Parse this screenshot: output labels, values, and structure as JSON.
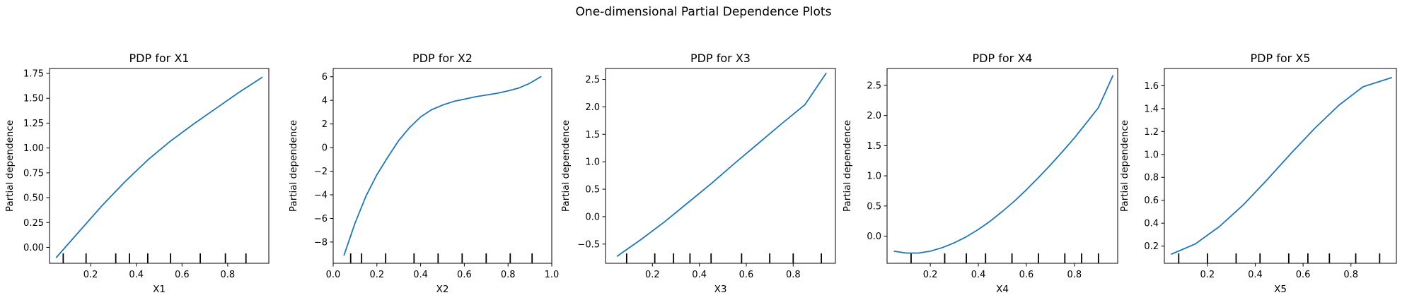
{
  "figure": {
    "title": "One-dimensional Partial Dependence Plots"
  },
  "colors": {
    "line": "#1f77b4",
    "axis": "#000000",
    "background": "#ffffff"
  },
  "chart_data": [
    {
      "type": "line",
      "title": "PDP for X1",
      "xlabel": "X1",
      "ylabel": "Partial dependence",
      "xlim": [
        0.02,
        0.98
      ],
      "ylim": [
        -0.16,
        1.8
      ],
      "xticks": [
        0.2,
        0.4,
        0.6,
        0.8
      ],
      "xtick_labels": [
        "0.2",
        "0.4",
        "0.6",
        "0.8"
      ],
      "yticks": [
        0.0,
        0.25,
        0.5,
        0.75,
        1.0,
        1.25,
        1.5,
        1.75
      ],
      "ytick_labels": [
        "0.00",
        "0.25",
        "0.50",
        "0.75",
        "1.00",
        "1.25",
        "1.50",
        "1.75"
      ],
      "series": [
        {
          "x": [
            0.05,
            0.15,
            0.25,
            0.35,
            0.45,
            0.55,
            0.65,
            0.75,
            0.85,
            0.95
          ],
          "y": [
            -0.1,
            0.16,
            0.42,
            0.66,
            0.88,
            1.07,
            1.24,
            1.4,
            1.56,
            1.71
          ]
        }
      ],
      "rug": [
        0.08,
        0.18,
        0.31,
        0.37,
        0.45,
        0.55,
        0.68,
        0.79,
        0.88
      ]
    },
    {
      "type": "line",
      "title": "PDP for X2",
      "xlabel": "X2",
      "ylabel": "Partial dependence",
      "xlim": [
        0.0,
        1.0
      ],
      "ylim": [
        -9.8,
        6.7
      ],
      "xticks": [
        0.0,
        0.2,
        0.4,
        0.6,
        0.8,
        1.0
      ],
      "xtick_labels": [
        "0.0",
        "0.2",
        "0.4",
        "0.6",
        "0.8",
        "1.0"
      ],
      "yticks": [
        -8,
        -6,
        -4,
        -2,
        0,
        2,
        4,
        6
      ],
      "ytick_labels": [
        "−8",
        "−6",
        "−4",
        "−2",
        "0",
        "2",
        "4",
        "6"
      ],
      "series": [
        {
          "x": [
            0.05,
            0.1,
            0.15,
            0.2,
            0.25,
            0.3,
            0.35,
            0.4,
            0.45,
            0.5,
            0.55,
            0.6,
            0.65,
            0.7,
            0.75,
            0.8,
            0.85,
            0.9,
            0.95
          ],
          "y": [
            -9.1,
            -6.4,
            -4.1,
            -2.3,
            -0.8,
            0.6,
            1.7,
            2.6,
            3.2,
            3.6,
            3.9,
            4.1,
            4.3,
            4.45,
            4.6,
            4.8,
            5.05,
            5.45,
            6.0
          ]
        }
      ],
      "rug": [
        0.08,
        0.13,
        0.24,
        0.37,
        0.48,
        0.59,
        0.7,
        0.81,
        0.91
      ]
    },
    {
      "type": "line",
      "title": "PDP for X3",
      "xlabel": "X3",
      "ylabel": "Partial dependence",
      "xlim": [
        0.0,
        0.98
      ],
      "ylim": [
        -0.85,
        2.7
      ],
      "xticks": [
        0.2,
        0.4,
        0.6,
        0.8
      ],
      "xtick_labels": [
        "0.2",
        "0.4",
        "0.6",
        "0.8"
      ],
      "yticks": [
        -0.5,
        0.0,
        0.5,
        1.0,
        1.5,
        2.0,
        2.5
      ],
      "ytick_labels": [
        "−0.5",
        "0.0",
        "0.5",
        "1.0",
        "1.5",
        "2.0",
        "2.5"
      ],
      "series": [
        {
          "x": [
            0.05,
            0.15,
            0.25,
            0.35,
            0.45,
            0.55,
            0.65,
            0.75,
            0.85,
            0.94
          ],
          "y": [
            -0.72,
            -0.42,
            -0.1,
            0.25,
            0.6,
            0.97,
            1.33,
            1.69,
            2.04,
            2.61
          ]
        }
      ],
      "rug": [
        0.09,
        0.21,
        0.29,
        0.36,
        0.45,
        0.58,
        0.7,
        0.8,
        0.92
      ]
    },
    {
      "type": "line",
      "title": "PDP for X4",
      "xlabel": "X4",
      "ylabel": "Partial dependence",
      "xlim": [
        0.02,
        0.98
      ],
      "ylim": [
        -0.45,
        2.78
      ],
      "xticks": [
        0.2,
        0.4,
        0.6,
        0.8
      ],
      "xtick_labels": [
        "0.2",
        "0.4",
        "0.6",
        "0.8"
      ],
      "yticks": [
        0.0,
        0.5,
        1.0,
        1.5,
        2.0,
        2.5
      ],
      "ytick_labels": [
        "0.0",
        "0.5",
        "1.0",
        "1.5",
        "2.0",
        "2.5"
      ],
      "series": [
        {
          "x": [
            0.05,
            0.1,
            0.15,
            0.2,
            0.25,
            0.3,
            0.35,
            0.4,
            0.45,
            0.5,
            0.55,
            0.6,
            0.65,
            0.7,
            0.75,
            0.8,
            0.85,
            0.9,
            0.96
          ],
          "y": [
            -0.25,
            -0.28,
            -0.28,
            -0.25,
            -0.19,
            -0.11,
            -0.01,
            0.11,
            0.25,
            0.41,
            0.58,
            0.77,
            0.97,
            1.18,
            1.4,
            1.63,
            1.88,
            2.13,
            2.66
          ]
        }
      ],
      "rug": [
        0.12,
        0.26,
        0.35,
        0.43,
        0.54,
        0.65,
        0.76,
        0.83,
        0.9
      ]
    },
    {
      "type": "line",
      "title": "PDP for X5",
      "xlabel": "X5",
      "ylabel": "Partial dependence",
      "xlim": [
        0.02,
        0.99
      ],
      "ylim": [
        0.05,
        1.75
      ],
      "xticks": [
        0.2,
        0.4,
        0.6,
        0.8
      ],
      "xtick_labels": [
        "0.2",
        "0.4",
        "0.6",
        "0.8"
      ],
      "yticks": [
        0.2,
        0.4,
        0.6,
        0.8,
        1.0,
        1.2,
        1.4,
        1.6
      ],
      "ytick_labels": [
        "0.2",
        "0.4",
        "0.6",
        "0.8",
        "1.0",
        "1.2",
        "1.4",
        "1.6"
      ],
      "series": [
        {
          "x": [
            0.05,
            0.15,
            0.25,
            0.35,
            0.45,
            0.55,
            0.65,
            0.75,
            0.85,
            0.97
          ],
          "y": [
            0.13,
            0.22,
            0.37,
            0.56,
            0.78,
            1.01,
            1.23,
            1.43,
            1.59,
            1.67
          ]
        }
      ],
      "rug": [
        0.08,
        0.2,
        0.32,
        0.42,
        0.54,
        0.62,
        0.71,
        0.82,
        0.92
      ]
    }
  ]
}
